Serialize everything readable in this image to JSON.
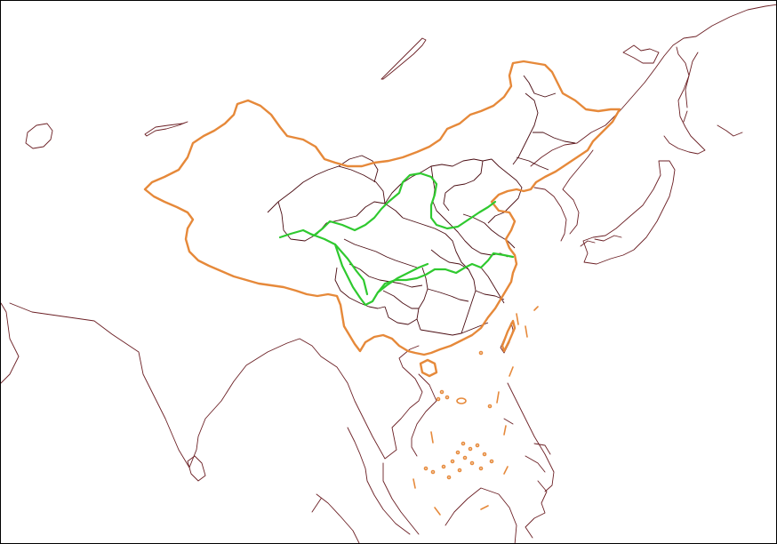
{
  "map": {
    "background": "#ffffff",
    "colors": {
      "coastline": "#6b1f24",
      "province_border": "#4a0c12",
      "national_border": "#e6893a",
      "rivers": "#2fc92f"
    },
    "layers": [
      "coastline",
      "province-borders",
      "national-border",
      "south-sea-islands",
      "rivers"
    ],
    "labels": []
  }
}
